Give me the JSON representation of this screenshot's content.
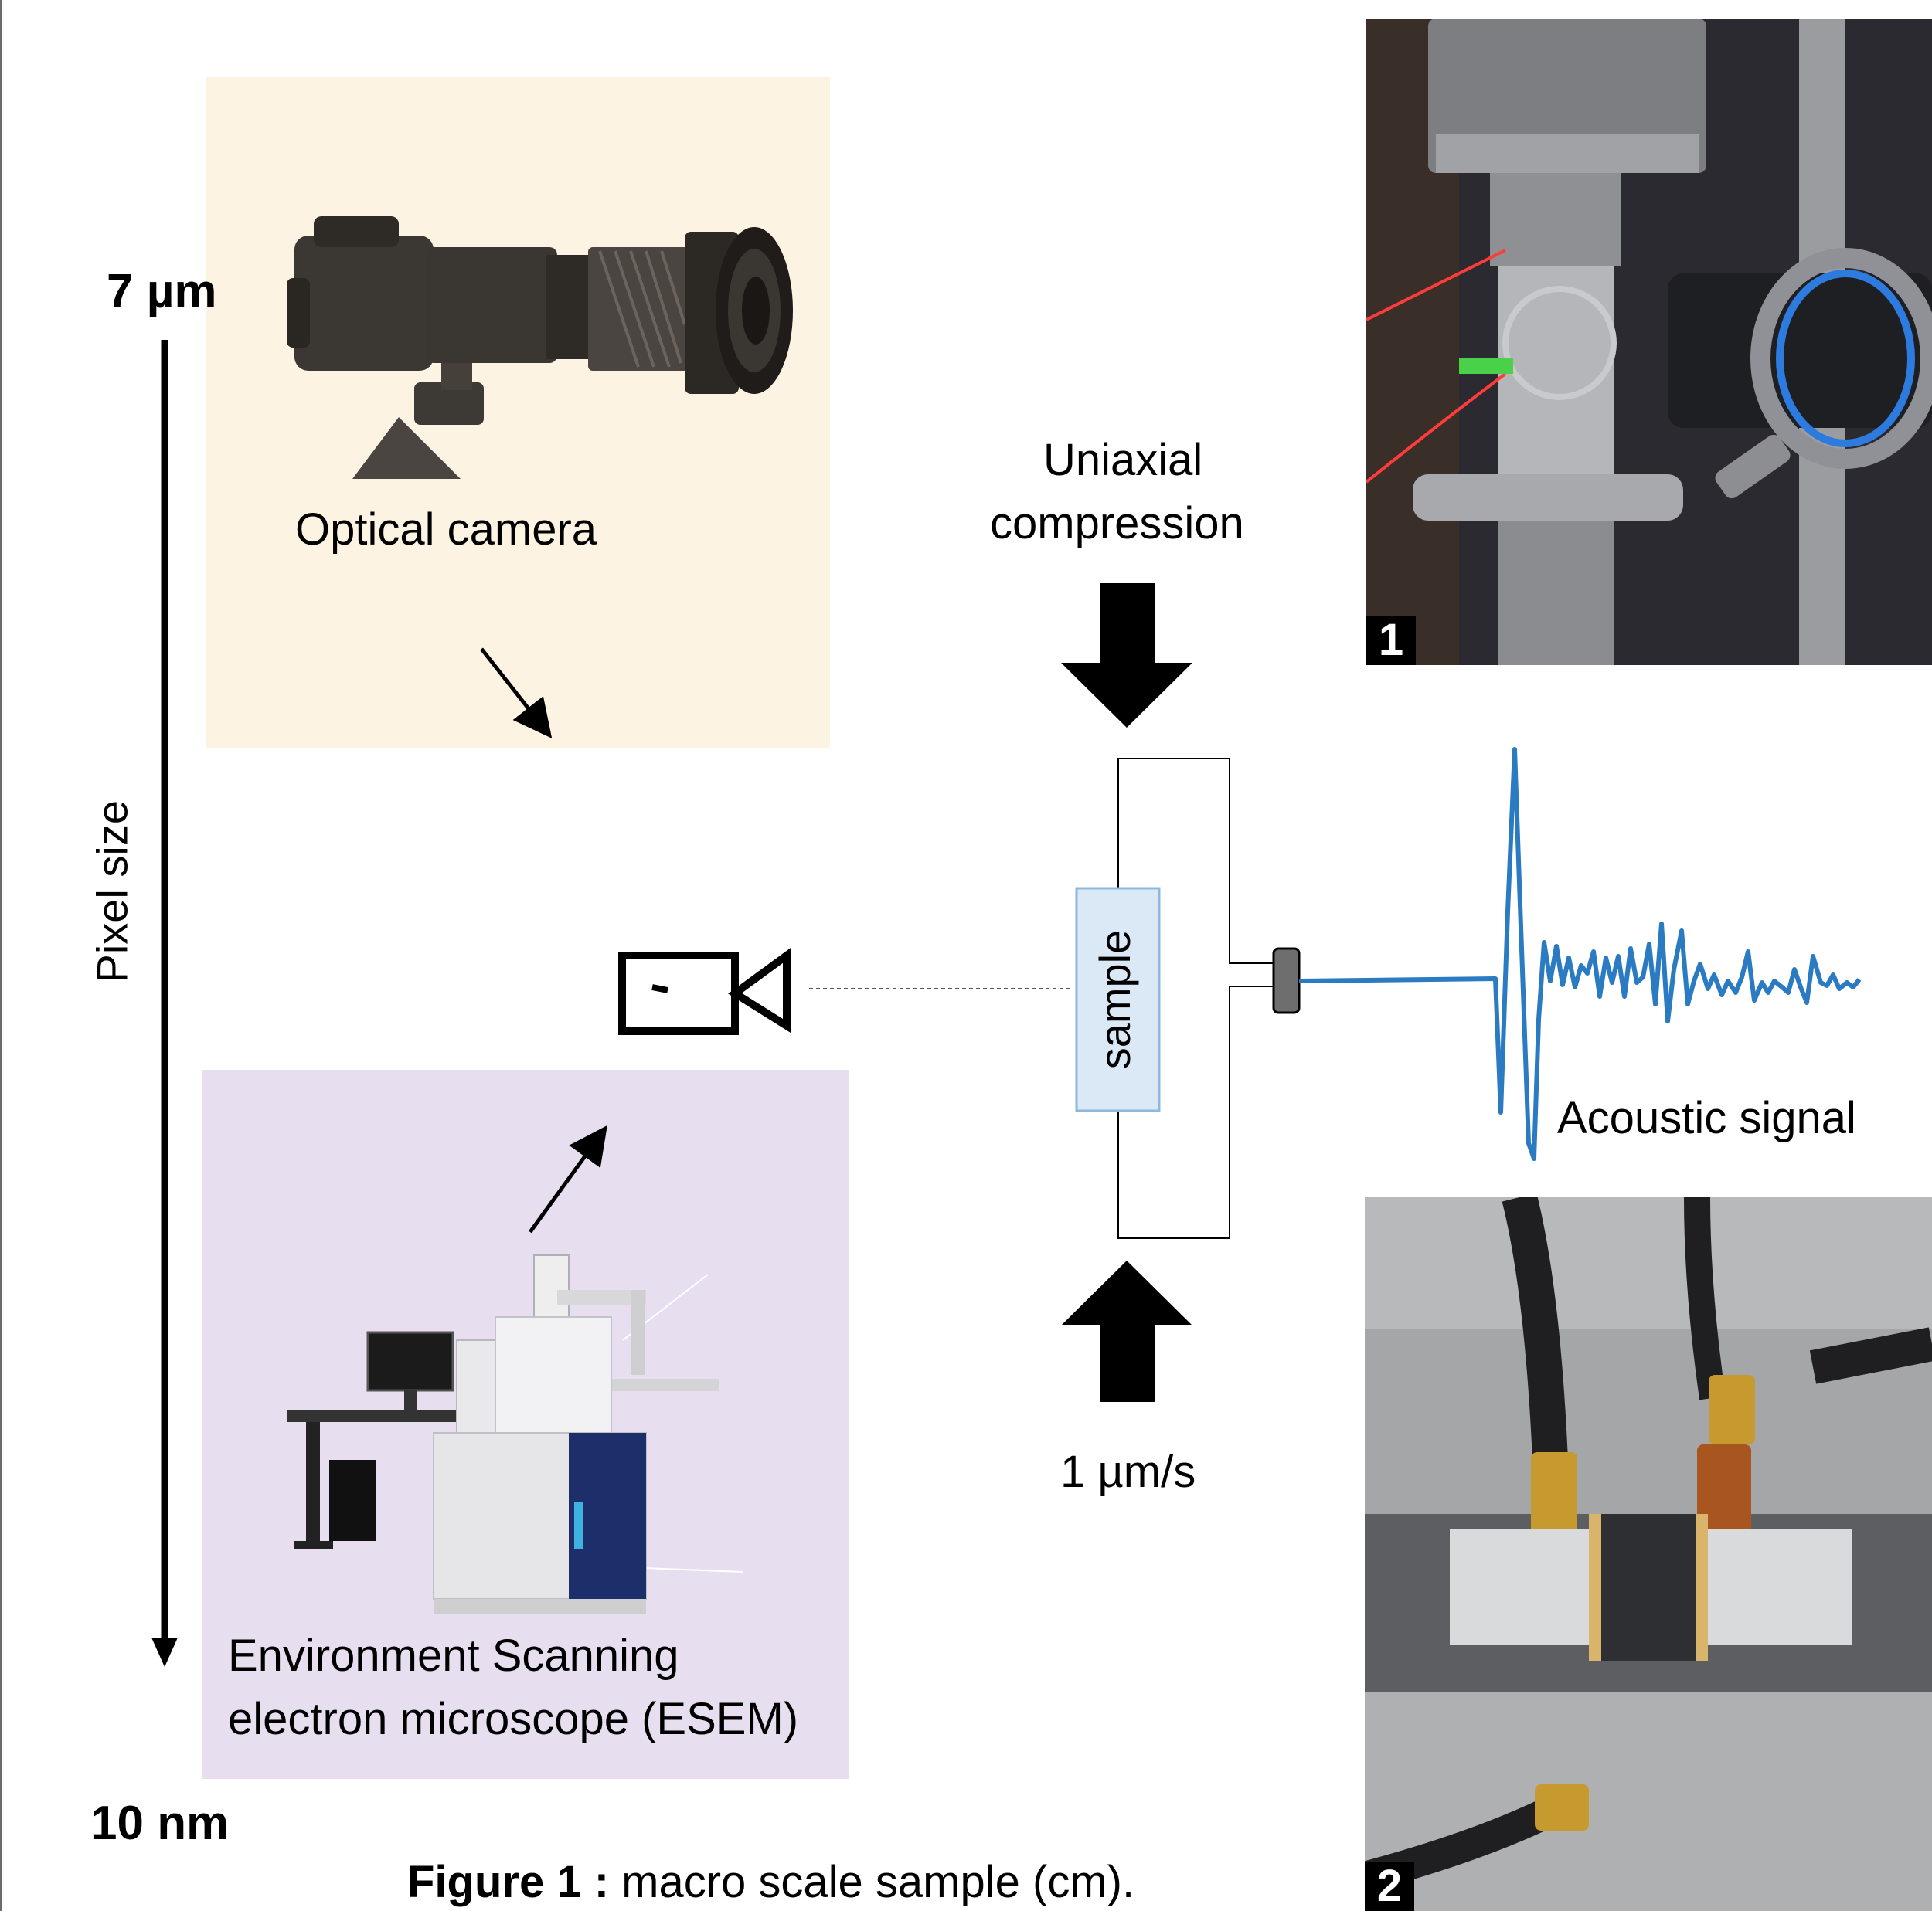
{
  "scale": {
    "top_value": "7 µm",
    "bottom_value": "10 nm",
    "axis_label": "Pixel size"
  },
  "optical": {
    "caption": "Optical camera"
  },
  "esem": {
    "caption_line1": "Environment Scanning",
    "caption_line2": "electron microscope (ESEM)"
  },
  "setup": {
    "compression_line1": "Uniaxial",
    "compression_line2": "compression",
    "rate": "1 µm/s",
    "sample_label": "sample",
    "signal_label": "Acoustic signal"
  },
  "photos": [
    {
      "badge": "1"
    },
    {
      "badge": "2"
    }
  ],
  "figure": {
    "caption_bold": "Figure 1 :",
    "caption_rest": " macro scale sample (cm)."
  },
  "colors": {
    "signal": "#2a7bc1",
    "sample_fill": "#dbe9f7",
    "sample_border": "#8fb6dd",
    "optical_panel": "#fcf3e3",
    "esem_panel": "#e7dff0",
    "sensor": "#6e6e6e"
  }
}
